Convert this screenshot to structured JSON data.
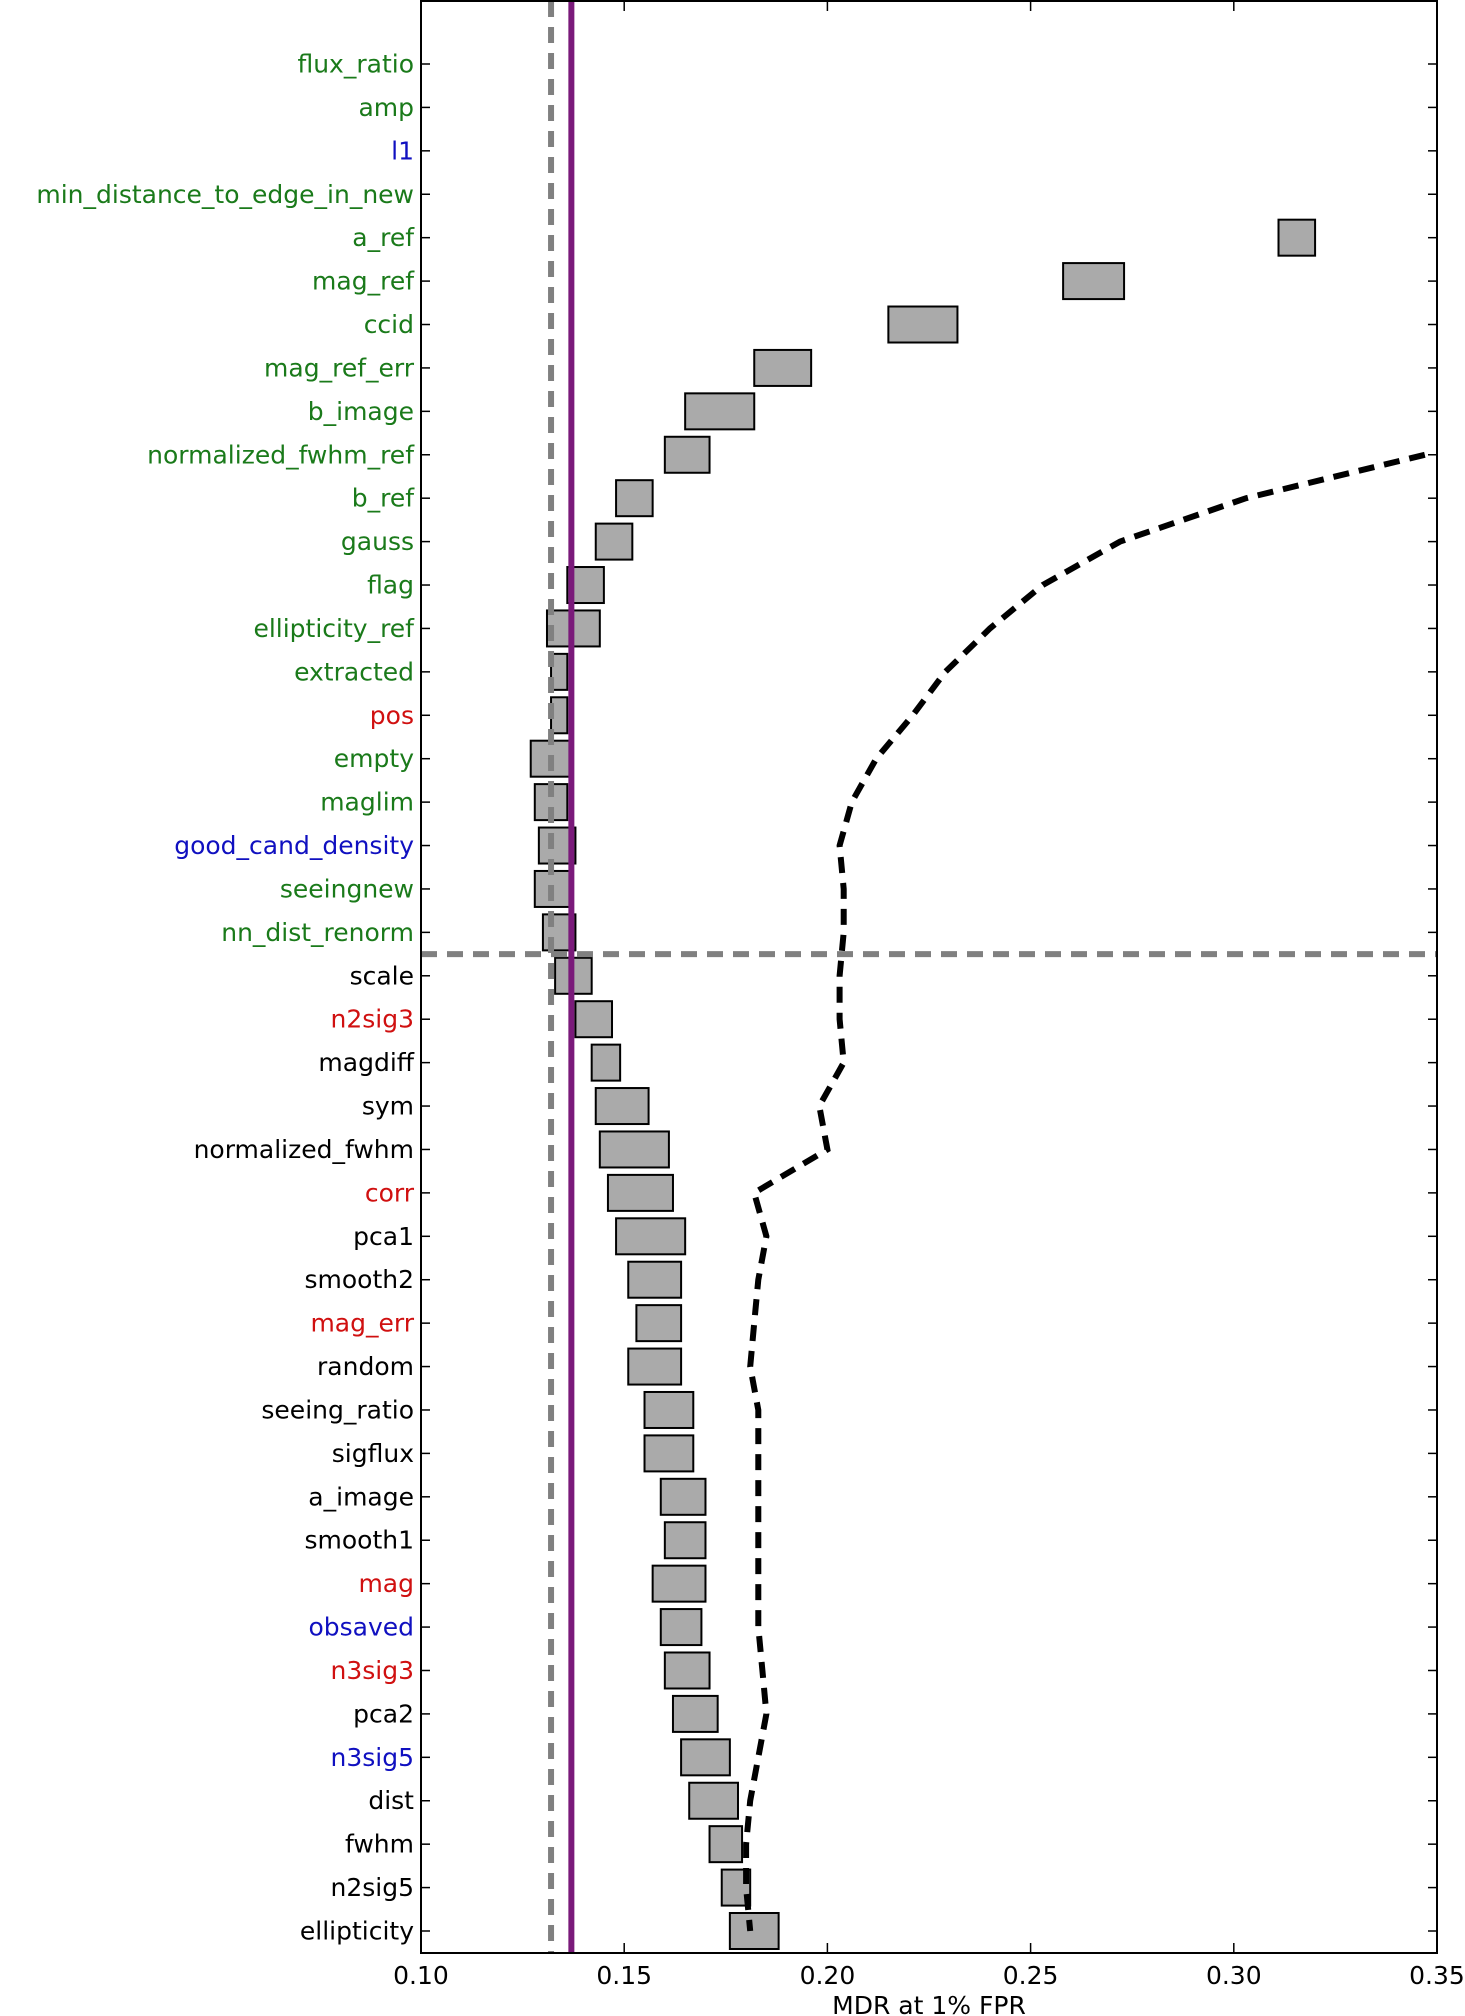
{
  "chart_data": {
    "type": "bar",
    "title": "",
    "xlabel": "MDR at 1% FPR",
    "ylabel": "",
    "xlim": [
      0.1,
      0.35
    ],
    "xticks": [
      "0.10",
      "0.15",
      "0.20",
      "0.25",
      "0.30",
      "0.35"
    ],
    "grid": false,
    "legend": "none",
    "colors": {
      "green": "#1a7a1a",
      "blue": "#1010c0",
      "red": "#d01010",
      "black": "#000000",
      "box_fill": "#aaaaaa",
      "purple_line": "#7a1a7a",
      "gray_dashed": "#808080"
    },
    "reference_lines": {
      "purple_solid_x": 0.137,
      "gray_dashed_x": 0.132,
      "gray_dashed_horizontal_between": [
        "nn_dist_renorm",
        "scale"
      ]
    },
    "features": [
      {
        "name": "flux_ratio",
        "color": "green",
        "low": null,
        "high": null,
        "curve": null
      },
      {
        "name": "amp",
        "color": "green",
        "low": null,
        "high": null,
        "curve": null
      },
      {
        "name": "l1",
        "color": "blue",
        "low": null,
        "high": null,
        "curve": null
      },
      {
        "name": "min_distance_to_edge_in_new",
        "color": "green",
        "low": null,
        "high": null,
        "curve": null
      },
      {
        "name": "a_ref",
        "color": "green",
        "low": 0.311,
        "high": 0.32,
        "curve": null
      },
      {
        "name": "mag_ref",
        "color": "green",
        "low": 0.258,
        "high": 0.273,
        "curve": null
      },
      {
        "name": "ccid",
        "color": "green",
        "low": 0.215,
        "high": 0.232,
        "curve": null
      },
      {
        "name": "mag_ref_err",
        "color": "green",
        "low": 0.182,
        "high": 0.196,
        "curve": null
      },
      {
        "name": "b_image",
        "color": "green",
        "low": 0.165,
        "high": 0.182,
        "curve": null
      },
      {
        "name": "normalized_fwhm_ref",
        "color": "green",
        "low": 0.16,
        "high": 0.171,
        "curve": 0.347
      },
      {
        "name": "b_ref",
        "color": "green",
        "low": 0.148,
        "high": 0.157,
        "curve": 0.303
      },
      {
        "name": "gauss",
        "color": "green",
        "low": 0.143,
        "high": 0.152,
        "curve": 0.272
      },
      {
        "name": "flag",
        "color": "green",
        "low": 0.136,
        "high": 0.145,
        "curve": 0.253
      },
      {
        "name": "ellipticity_ref",
        "color": "green",
        "low": 0.131,
        "high": 0.144,
        "curve": 0.24
      },
      {
        "name": "extracted",
        "color": "green",
        "low": 0.132,
        "high": 0.136,
        "curve": 0.229
      },
      {
        "name": "pos",
        "color": "red",
        "low": 0.132,
        "high": 0.136,
        "curve": 0.221
      },
      {
        "name": "empty",
        "color": "green",
        "low": 0.127,
        "high": 0.137,
        "curve": 0.212
      },
      {
        "name": "maglim",
        "color": "green",
        "low": 0.128,
        "high": 0.136,
        "curve": 0.206
      },
      {
        "name": "good_cand_density",
        "color": "blue",
        "low": 0.129,
        "high": 0.138,
        "curve": 0.203
      },
      {
        "name": "seeingnew",
        "color": "green",
        "low": 0.128,
        "high": 0.137,
        "curve": 0.204
      },
      {
        "name": "nn_dist_renorm",
        "color": "green",
        "low": 0.13,
        "high": 0.138,
        "curve": 0.204
      },
      {
        "name": "scale",
        "color": "black",
        "low": 0.133,
        "high": 0.142,
        "curve": 0.203
      },
      {
        "name": "n2sig3",
        "color": "red",
        "low": 0.138,
        "high": 0.147,
        "curve": 0.203
      },
      {
        "name": "magdiff",
        "color": "black",
        "low": 0.142,
        "high": 0.149,
        "curve": 0.204
      },
      {
        "name": "sym",
        "color": "black",
        "low": 0.143,
        "high": 0.156,
        "curve": 0.198
      },
      {
        "name": "normalized_fwhm",
        "color": "black",
        "low": 0.144,
        "high": 0.161,
        "curve": 0.2
      },
      {
        "name": "corr",
        "color": "red",
        "low": 0.146,
        "high": 0.162,
        "curve": 0.182
      },
      {
        "name": "pca1",
        "color": "black",
        "low": 0.148,
        "high": 0.165,
        "curve": 0.185
      },
      {
        "name": "smooth2",
        "color": "black",
        "low": 0.151,
        "high": 0.164,
        "curve": 0.183
      },
      {
        "name": "mag_err",
        "color": "red",
        "low": 0.153,
        "high": 0.164,
        "curve": 0.182
      },
      {
        "name": "random",
        "color": "black",
        "low": 0.151,
        "high": 0.164,
        "curve": 0.181
      },
      {
        "name": "seeing_ratio",
        "color": "black",
        "low": 0.155,
        "high": 0.167,
        "curve": 0.183
      },
      {
        "name": "sigflux",
        "color": "black",
        "low": 0.155,
        "high": 0.167,
        "curve": 0.183
      },
      {
        "name": "a_image",
        "color": "black",
        "low": 0.159,
        "high": 0.17,
        "curve": 0.183
      },
      {
        "name": "smooth1",
        "color": "black",
        "low": 0.16,
        "high": 0.17,
        "curve": 0.183
      },
      {
        "name": "mag",
        "color": "red",
        "low": 0.157,
        "high": 0.17,
        "curve": 0.183
      },
      {
        "name": "obsaved",
        "color": "blue",
        "low": 0.159,
        "high": 0.169,
        "curve": 0.183
      },
      {
        "name": "n3sig3",
        "color": "red",
        "low": 0.16,
        "high": 0.171,
        "curve": 0.184
      },
      {
        "name": "pca2",
        "color": "black",
        "low": 0.162,
        "high": 0.173,
        "curve": 0.185
      },
      {
        "name": "n3sig5",
        "color": "blue",
        "low": 0.164,
        "high": 0.176,
        "curve": 0.183
      },
      {
        "name": "dist",
        "color": "black",
        "low": 0.166,
        "high": 0.178,
        "curve": 0.181
      },
      {
        "name": "fwhm",
        "color": "black",
        "low": 0.171,
        "high": 0.179,
        "curve": 0.18
      },
      {
        "name": "n2sig5",
        "color": "black",
        "low": 0.174,
        "high": 0.181,
        "curve": 0.18
      },
      {
        "name": "ellipticity",
        "color": "black",
        "low": 0.176,
        "high": 0.188,
        "curve": 0.181
      }
    ]
  }
}
